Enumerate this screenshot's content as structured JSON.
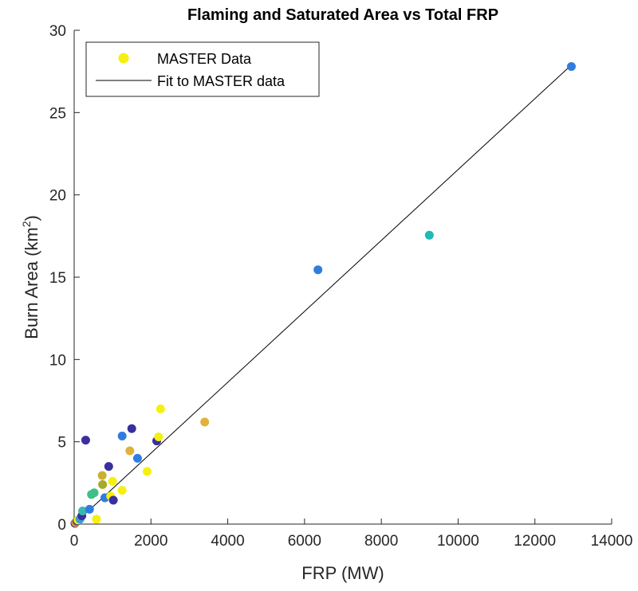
{
  "chart_data": {
    "type": "scatter",
    "title": "Flaming and Saturated Area vs Total FRP",
    "xlabel": "FRP (MW)",
    "ylabel": "Burn Area (km",
    "ylabel_sup": "2",
    "ylabel_close": ")",
    "xlim": [
      0,
      14000
    ],
    "ylim": [
      0,
      30
    ],
    "xticks": [
      0,
      2000,
      4000,
      6000,
      8000,
      10000,
      12000,
      14000
    ],
    "yticks": [
      0,
      5,
      10,
      15,
      20,
      25,
      30
    ],
    "grid": false,
    "legend_placement": "top-left",
    "legend": [
      {
        "label": "MASTER Data",
        "kind": "marker",
        "color": "#f5f00f"
      },
      {
        "label": "Fit to MASTER data",
        "kind": "line",
        "color": "#000000"
      }
    ],
    "fit_line": {
      "x": [
        0,
        13000
      ],
      "y": [
        0,
        28.0
      ],
      "color": "#000000"
    },
    "series": [
      {
        "name": "MASTER Data",
        "points": [
          {
            "x": 20,
            "y": 0.05,
            "color": "#5a2a96"
          },
          {
            "x": 40,
            "y": 0.1,
            "color": "#e0b23a"
          },
          {
            "x": 60,
            "y": 0.15,
            "color": "#8a8a2a"
          },
          {
            "x": 80,
            "y": 0.2,
            "color": "#5a2a96"
          },
          {
            "x": 100,
            "y": 0.25,
            "color": "#f5f00f"
          },
          {
            "x": 150,
            "y": 0.3,
            "color": "#3aa0c8"
          },
          {
            "x": 200,
            "y": 0.5,
            "color": "#3a2ea0"
          },
          {
            "x": 220,
            "y": 0.8,
            "color": "#3ab8b0"
          },
          {
            "x": 300,
            "y": 5.1,
            "color": "#3a2ea0"
          },
          {
            "x": 400,
            "y": 0.9,
            "color": "#2f7de1"
          },
          {
            "x": 450,
            "y": 1.8,
            "color": "#3cc088"
          },
          {
            "x": 520,
            "y": 1.9,
            "color": "#3cc088"
          },
          {
            "x": 580,
            "y": 0.3,
            "color": "#f5f00f"
          },
          {
            "x": 730,
            "y": 2.95,
            "color": "#c8b030"
          },
          {
            "x": 740,
            "y": 2.4,
            "color": "#a8a82a"
          },
          {
            "x": 800,
            "y": 1.6,
            "color": "#2f7de1"
          },
          {
            "x": 900,
            "y": 3.5,
            "color": "#3a2ea0"
          },
          {
            "x": 950,
            "y": 1.7,
            "color": "#f5f00f"
          },
          {
            "x": 1000,
            "y": 2.6,
            "color": "#f5f00f"
          },
          {
            "x": 1020,
            "y": 1.45,
            "color": "#3a2ea0"
          },
          {
            "x": 1250,
            "y": 2.05,
            "color": "#f5f00f"
          },
          {
            "x": 1250,
            "y": 5.35,
            "color": "#2f7de1"
          },
          {
            "x": 1450,
            "y": 4.45,
            "color": "#e0b23a"
          },
          {
            "x": 1500,
            "y": 5.8,
            "color": "#3a2ea0"
          },
          {
            "x": 1650,
            "y": 4.0,
            "color": "#2f7de1"
          },
          {
            "x": 1900,
            "y": 3.2,
            "color": "#f5f00f"
          },
          {
            "x": 2150,
            "y": 5.05,
            "color": "#3a2ea0"
          },
          {
            "x": 2200,
            "y": 5.3,
            "color": "#f5f00f"
          },
          {
            "x": 2250,
            "y": 7.0,
            "color": "#f5f00f"
          },
          {
            "x": 3400,
            "y": 6.2,
            "color": "#e0b23a"
          },
          {
            "x": 6350,
            "y": 15.45,
            "color": "#2f7de1"
          },
          {
            "x": 9250,
            "y": 17.55,
            "color": "#1ebab4"
          },
          {
            "x": 12950,
            "y": 27.8,
            "color": "#2f7de1"
          }
        ]
      }
    ]
  }
}
